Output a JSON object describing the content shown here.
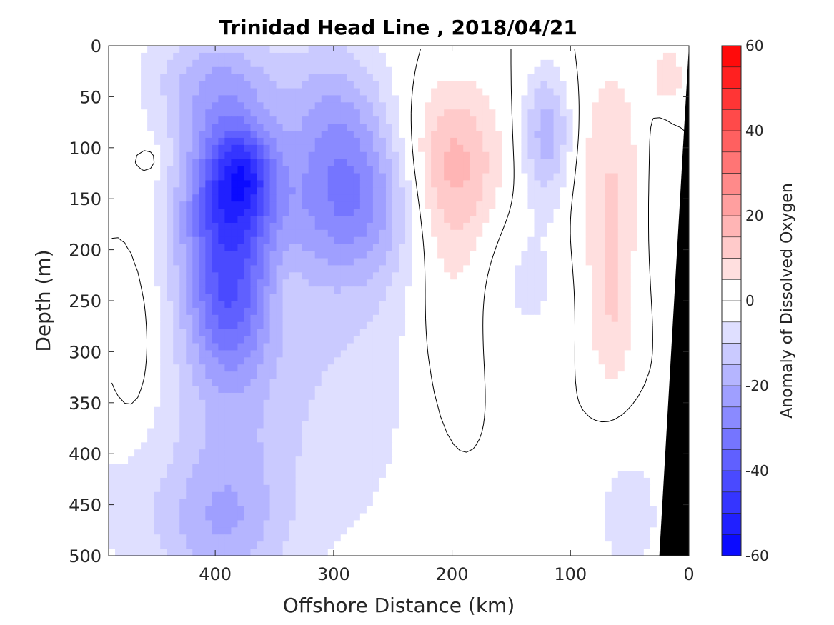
{
  "chart_data": {
    "type": "heatmap",
    "title": "Trinidad Head Line , 2018/04/21",
    "xlabel": "Offshore Distance (km)",
    "ylabel": "Depth (m)",
    "colorbar_label": "Anomaly of Dissolved Oxygen",
    "xlim": [
      490,
      0
    ],
    "ylim": [
      0,
      500
    ],
    "x_ticks": [
      400,
      300,
      200,
      100,
      0
    ],
    "y_ticks": [
      0,
      50,
      100,
      150,
      200,
      250,
      300,
      350,
      400,
      450,
      500
    ],
    "colorbar_range": [
      -60,
      60
    ],
    "colorbar_step": 5,
    "colorbar_ticks": [
      60,
      40,
      20,
      0,
      -20,
      -40,
      -60
    ],
    "colormap": {
      "negative": "#0000ff",
      "zero": "#ffffff",
      "positive": "#ff0000"
    },
    "contour_level": 0,
    "land_mask_color": "#000000",
    "features": [
      {
        "x": 390,
        "y": 160,
        "sigma_x": 28,
        "sigma_y": 70,
        "value": -35
      },
      {
        "x": 390,
        "y": 270,
        "sigma_x": 22,
        "sigma_y": 40,
        "value": -12
      },
      {
        "x": 375,
        "y": 125,
        "sigma_x": 18,
        "sigma_y": 30,
        "value": -18
      },
      {
        "x": 390,
        "y": 330,
        "sigma_x": 38,
        "sigma_y": 170,
        "value": -14
      },
      {
        "x": 405,
        "y": 30,
        "sigma_x": 42,
        "sigma_y": 40,
        "value": -12
      },
      {
        "x": 285,
        "y": 150,
        "sigma_x": 38,
        "sigma_y": 55,
        "value": -22
      },
      {
        "x": 300,
        "y": 60,
        "sigma_x": 30,
        "sigma_y": 55,
        "value": -12
      },
      {
        "x": 295,
        "y": 280,
        "sigma_x": 55,
        "sigma_y": 170,
        "value": -9
      },
      {
        "x": 400,
        "y": 470,
        "sigma_x": 40,
        "sigma_y": 45,
        "value": -10
      },
      {
        "x": 200,
        "y": 115,
        "sigma_x": 30,
        "sigma_y": 55,
        "value": 16
      },
      {
        "x": 205,
        "y": 230,
        "sigma_x": 22,
        "sigma_y": 100,
        "value": 6
      },
      {
        "x": 120,
        "y": 85,
        "sigma_x": 15,
        "sigma_y": 45,
        "value": -18
      },
      {
        "x": 135,
        "y": 230,
        "sigma_x": 25,
        "sigma_y": 60,
        "value": -6
      },
      {
        "x": 65,
        "y": 130,
        "sigma_x": 22,
        "sigma_y": 80,
        "value": 10
      },
      {
        "x": 65,
        "y": 270,
        "sigma_x": 14,
        "sigma_y": 55,
        "value": 8
      },
      {
        "x": 470,
        "y": 300,
        "sigma_x": 14,
        "sigma_y": 60,
        "value": 6
      },
      {
        "x": 455,
        "y": 112,
        "sigma_x": 8,
        "sigma_y": 10,
        "value": 6
      },
      {
        "x": 18,
        "y": 30,
        "sigma_x": 10,
        "sigma_y": 20,
        "value": 10
      },
      {
        "x": 30,
        "y": 140,
        "sigma_x": 12,
        "sigma_y": 80,
        "value": -4
      },
      {
        "x": 50,
        "y": 460,
        "sigma_x": 25,
        "sigma_y": 60,
        "value": -7
      },
      {
        "x": 340,
        "y": 240,
        "sigma_x": 10,
        "sigma_y": 30,
        "value": 4
      },
      {
        "x": 480,
        "y": 440,
        "sigma_x": 30,
        "sigma_y": 80,
        "value": -5
      }
    ],
    "land_mask": [
      [
        0,
        500
      ],
      [
        0,
        0
      ],
      [
        25,
        500
      ]
    ]
  }
}
